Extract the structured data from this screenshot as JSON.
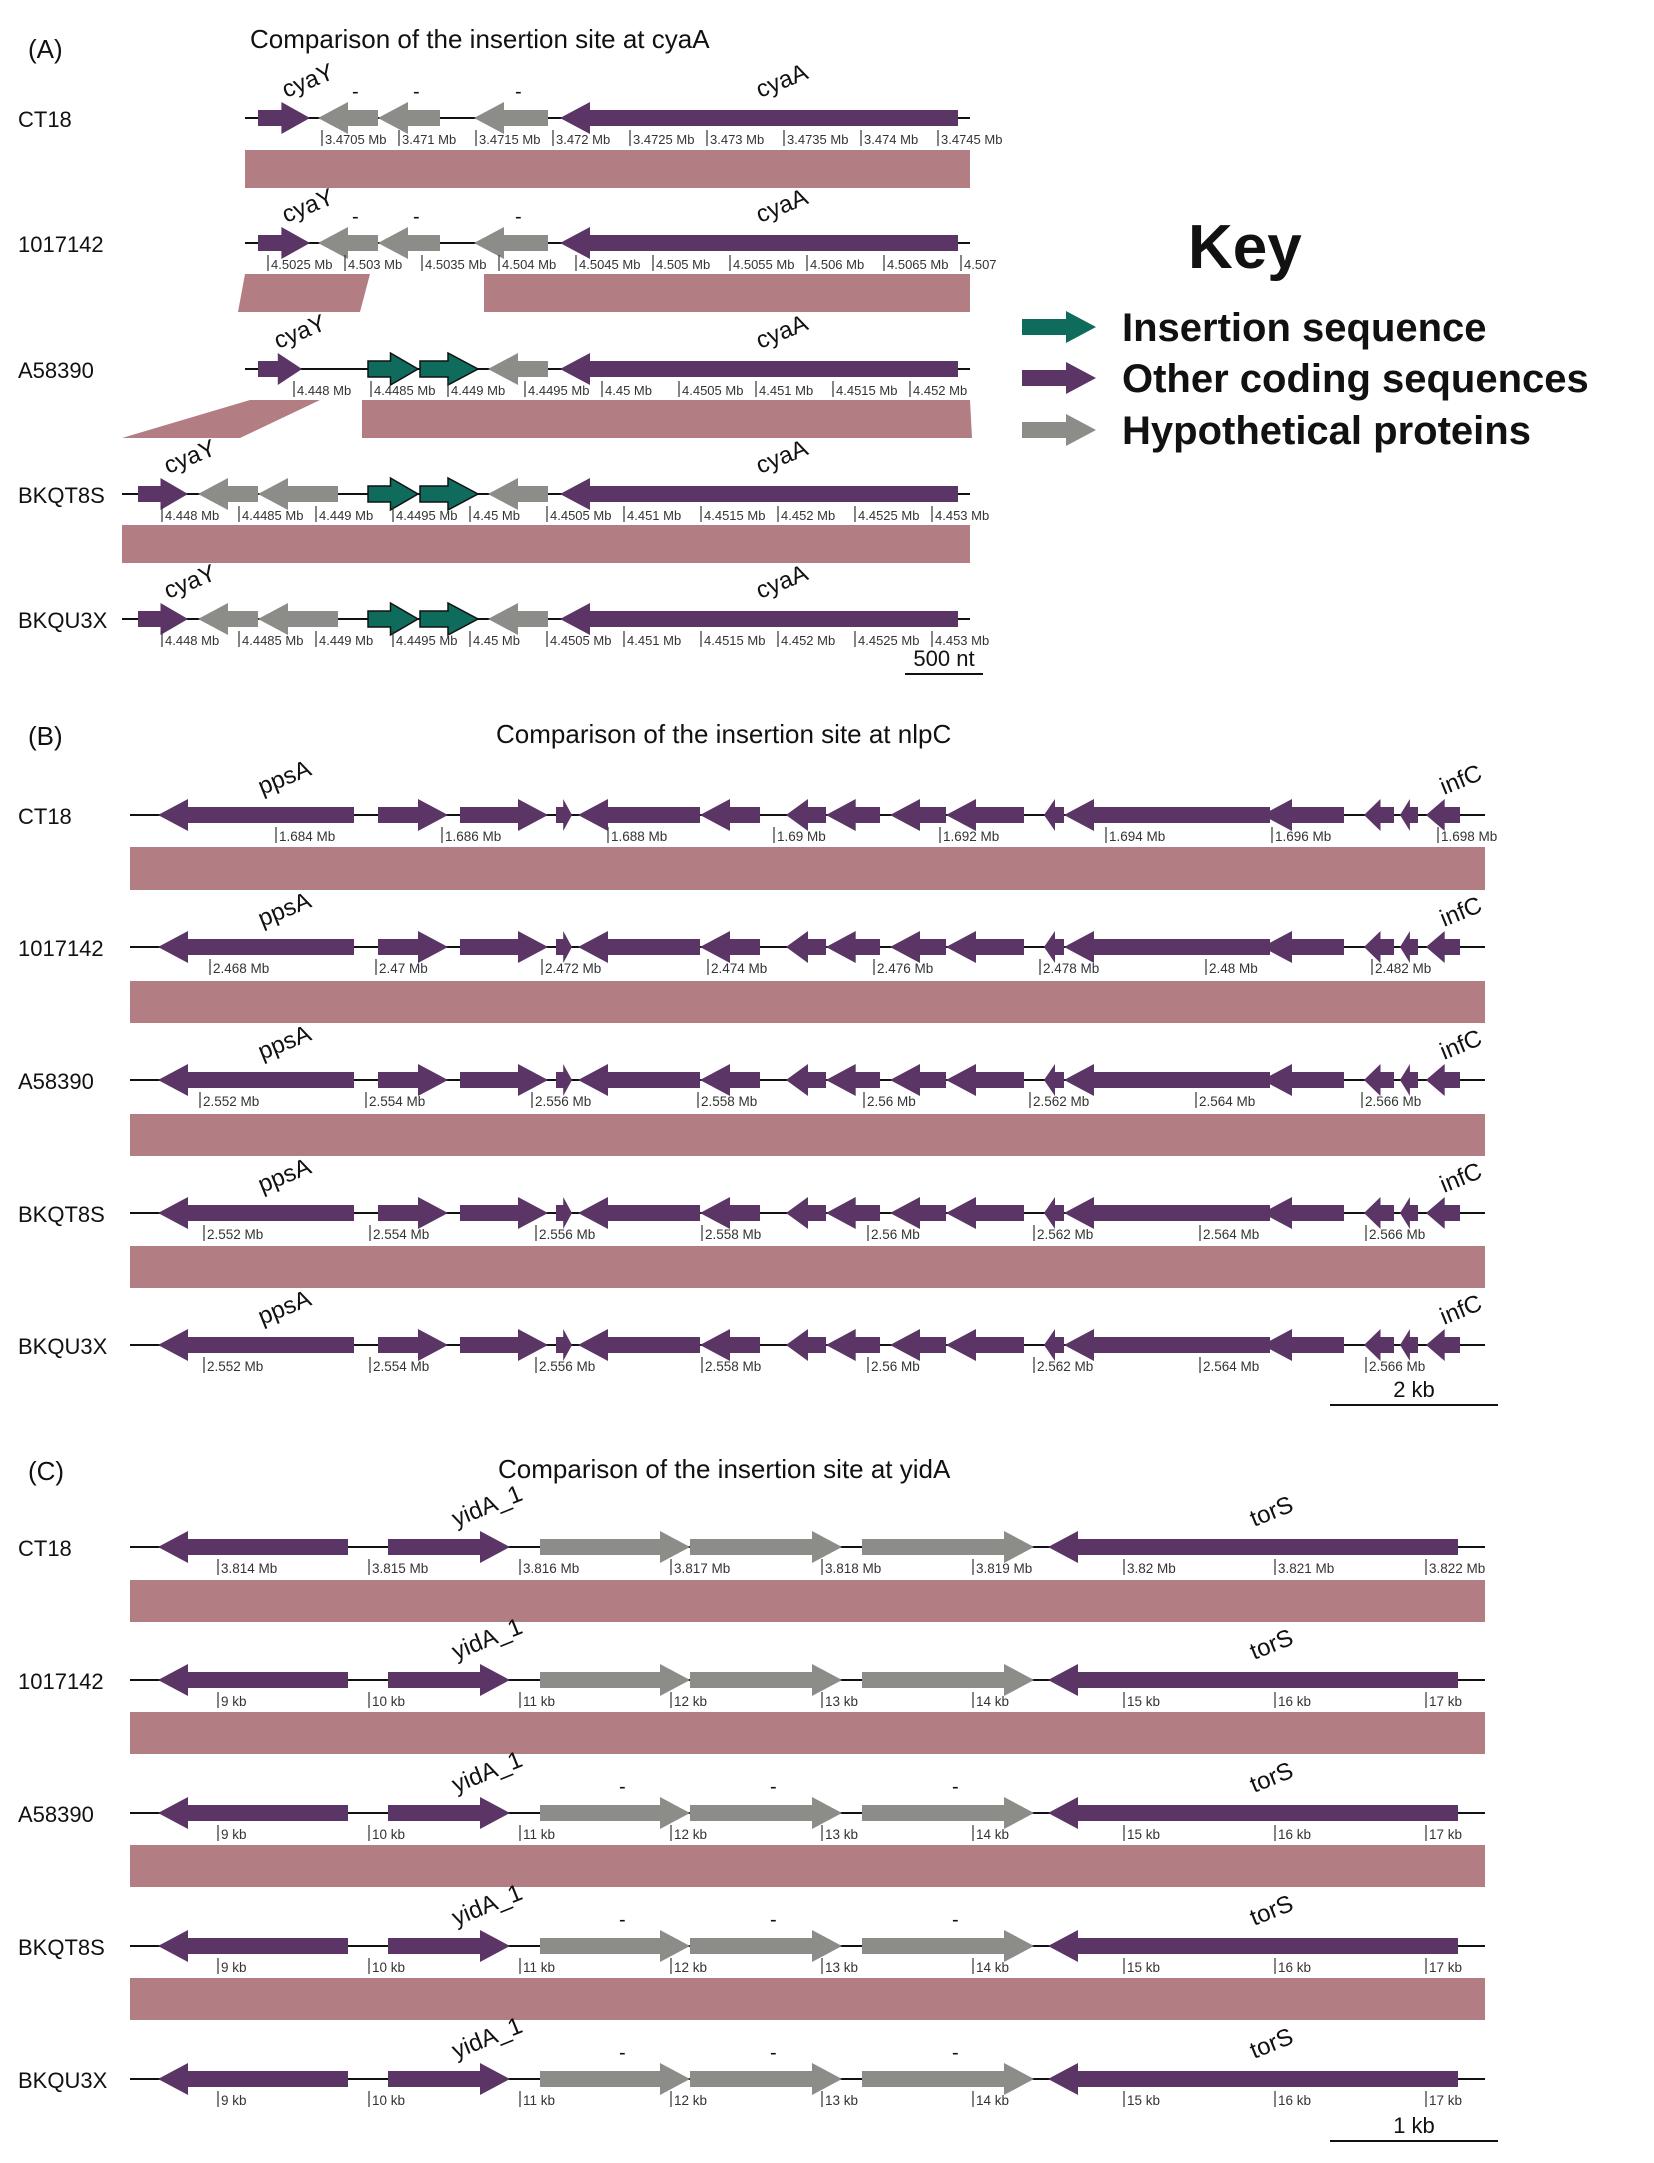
{
  "colors": {
    "insertion": "#0f6b5c",
    "other": "#5b3565",
    "hypothetical": "#8c8c89",
    "band": "#b27d83",
    "line": "#111111"
  },
  "key": {
    "title": "Key",
    "items": [
      {
        "label": "Insertion sequence",
        "type": "insertion"
      },
      {
        "label": "Other coding sequences",
        "type": "other"
      },
      {
        "label": "Hypothetical proteins",
        "type": "hypothetical"
      }
    ]
  },
  "panels": [
    {
      "letter": "(A)",
      "title": "Comparison of the insertion site at cyaA",
      "scale_label": "500 nt",
      "tracks": [
        {
          "strain": "CT18",
          "ticks": [
            "3.4705 Mb",
            "3.471 Mb",
            "3.4715 Mb",
            "3.472 Mb",
            "3.4725 Mb",
            "3.473 Mb",
            "3.4735 Mb",
            "3.474 Mb",
            "3.4745 Mb"
          ],
          "genes": [
            {
              "type": "other",
              "dir": 1,
              "label": "cyaY"
            },
            {
              "type": "hypothetical",
              "dir": -1,
              "label": "-"
            },
            {
              "type": "hypothetical",
              "dir": -1,
              "label": "-"
            },
            {
              "type": "hypothetical",
              "dir": -1,
              "label": "-"
            },
            {
              "type": "other",
              "dir": -1,
              "label": "cyaA"
            }
          ]
        },
        {
          "strain": "1017142",
          "ticks": [
            "4.5025 Mb",
            "4.503 Mb",
            "4.5035 Mb",
            "4.504 Mb",
            "4.5045 Mb",
            "4.505 Mb",
            "4.5055 Mb",
            "4.506 Mb",
            "4.5065 Mb",
            "4.507"
          ],
          "genes": [
            {
              "type": "other",
              "dir": 1,
              "label": "cyaY"
            },
            {
              "type": "hypothetical",
              "dir": -1,
              "label": "-"
            },
            {
              "type": "hypothetical",
              "dir": -1,
              "label": "-"
            },
            {
              "type": "hypothetical",
              "dir": -1,
              "label": "-"
            },
            {
              "type": "other",
              "dir": -1,
              "label": "cyaA"
            }
          ]
        },
        {
          "strain": "A58390",
          "ticks": [
            "4.448 Mb",
            "4.4485 Mb",
            "4.449 Mb",
            "4.4495 Mb",
            "4.45 Mb",
            "4.4505 Mb",
            "4.451 Mb",
            "4.4515 Mb",
            "4.452 Mb"
          ],
          "genes": [
            {
              "type": "other",
              "dir": 1,
              "label": "cyaY"
            },
            {
              "type": "insertion",
              "dir": 1,
              "label": ""
            },
            {
              "type": "insertion",
              "dir": 1,
              "label": ""
            },
            {
              "type": "hypothetical",
              "dir": -1,
              "label": ""
            },
            {
              "type": "other",
              "dir": -1,
              "label": "cyaA"
            }
          ]
        },
        {
          "strain": "BKQT8S",
          "ticks": [
            "4.448 Mb",
            "4.4485 Mb",
            "4.449 Mb",
            "4.4495 Mb",
            "4.45 Mb",
            "4.4505 Mb",
            "4.451 Mb",
            "4.4515 Mb",
            "4.452 Mb",
            "4.4525 Mb",
            "4.453 Mb"
          ],
          "genes": [
            {
              "type": "other",
              "dir": 1,
              "label": "cyaY"
            },
            {
              "type": "hypothetical",
              "dir": -1,
              "label": ""
            },
            {
              "type": "hypothetical",
              "dir": -1,
              "label": ""
            },
            {
              "type": "insertion",
              "dir": 1,
              "label": ""
            },
            {
              "type": "insertion",
              "dir": 1,
              "label": ""
            },
            {
              "type": "hypothetical",
              "dir": -1,
              "label": ""
            },
            {
              "type": "other",
              "dir": -1,
              "label": "cyaA"
            }
          ]
        },
        {
          "strain": "BKQU3X",
          "ticks": [
            "4.448 Mb",
            "4.4485 Mb",
            "4.449 Mb",
            "4.4495 Mb",
            "4.45 Mb",
            "4.4505 Mb",
            "4.451 Mb",
            "4.4515 Mb",
            "4.452 Mb",
            "4.4525 Mb",
            "4.453 Mb"
          ],
          "genes": [
            {
              "type": "other",
              "dir": 1,
              "label": "cyaY"
            },
            {
              "type": "hypothetical",
              "dir": -1,
              "label": ""
            },
            {
              "type": "hypothetical",
              "dir": -1,
              "label": ""
            },
            {
              "type": "insertion",
              "dir": 1,
              "label": ""
            },
            {
              "type": "insertion",
              "dir": 1,
              "label": ""
            },
            {
              "type": "hypothetical",
              "dir": -1,
              "label": ""
            },
            {
              "type": "other",
              "dir": -1,
              "label": "cyaA"
            }
          ]
        }
      ]
    },
    {
      "letter": "(B)",
      "title": "Comparison of the insertion site at nlpC",
      "scale_label": "2 kb",
      "tracks": [
        {
          "strain": "CT18",
          "ticks": [
            "1.684 Mb",
            "1.686 Mb",
            "1.688 Mb",
            "1.69 Mb",
            "1.692 Mb",
            "1.694 Mb",
            "1.696 Mb",
            "1.698 Mb"
          ]
        },
        {
          "strain": "1017142",
          "ticks": [
            "2.468 Mb",
            "2.47 Mb",
            "2.472 Mb",
            "2.474 Mb",
            "2.476 Mb",
            "2.478 Mb",
            "2.48 Mb",
            "2.482 Mb"
          ]
        },
        {
          "strain": "A58390",
          "ticks": [
            "2.552 Mb",
            "2.554 Mb",
            "2.556 Mb",
            "2.558 Mb",
            "2.56 Mb",
            "2.562 Mb",
            "2.564 Mb",
            "2.566 Mb"
          ]
        },
        {
          "strain": "BKQT8S",
          "ticks": [
            "2.552 Mb",
            "2.554 Mb",
            "2.556 Mb",
            "2.558 Mb",
            "2.56 Mb",
            "2.562 Mb",
            "2.564 Mb",
            "2.566 Mb"
          ]
        },
        {
          "strain": "BKQU3X",
          "ticks": [
            "2.552 Mb",
            "2.554 Mb",
            "2.556 Mb",
            "2.558 Mb",
            "2.56 Mb",
            "2.562 Mb",
            "2.564 Mb",
            "2.566 Mb"
          ]
        }
      ],
      "genes": [
        {
          "type": "other",
          "dir": -1,
          "label": "ppsA"
        },
        {
          "type": "other",
          "dir": 1,
          "label": ""
        },
        {
          "type": "other",
          "dir": 1,
          "label": ""
        },
        {
          "type": "other",
          "dir": 1,
          "label": ""
        },
        {
          "type": "other",
          "dir": -1,
          "label": ""
        },
        {
          "type": "other",
          "dir": -1,
          "label": ""
        },
        {
          "type": "other",
          "dir": -1,
          "label": ""
        },
        {
          "type": "other",
          "dir": -1,
          "label": ""
        },
        {
          "type": "other",
          "dir": -1,
          "label": ""
        },
        {
          "type": "other",
          "dir": -1,
          "label": ""
        },
        {
          "type": "other",
          "dir": -1,
          "label": ""
        },
        {
          "type": "other",
          "dir": -1,
          "label": ""
        },
        {
          "type": "other",
          "dir": -1,
          "label": ""
        },
        {
          "type": "other",
          "dir": -1,
          "label": ""
        },
        {
          "type": "other",
          "dir": -1,
          "label": ""
        },
        {
          "type": "other",
          "dir": -1,
          "label": ""
        },
        {
          "type": "other",
          "dir": -1,
          "label": "infC"
        }
      ]
    },
    {
      "letter": "(C)",
      "title": "Comparison of the insertion site at yidA",
      "scale_label": "1 kb",
      "tracks": [
        {
          "strain": "CT18",
          "ticks": [
            "3.814 Mb",
            "3.815 Mb",
            "3.816 Mb",
            "3.817 Mb",
            "3.818 Mb",
            "3.819 Mb",
            "3.82 Mb",
            "3.821 Mb",
            "3.822 Mb"
          ],
          "hypo_labels": [
            "",
            "",
            ""
          ]
        },
        {
          "strain": "1017142",
          "ticks": [
            "9 kb",
            "10 kb",
            "11 kb",
            "12 kb",
            "13 kb",
            "14 kb",
            "15 kb",
            "16 kb",
            "17 kb"
          ],
          "hypo_labels": [
            "",
            "",
            ""
          ]
        },
        {
          "strain": "A58390",
          "ticks": [
            "9 kb",
            "10 kb",
            "11 kb",
            "12 kb",
            "13 kb",
            "14 kb",
            "15 kb",
            "16 kb",
            "17 kb"
          ],
          "hypo_labels": [
            "-",
            "-",
            "-"
          ]
        },
        {
          "strain": "BKQT8S",
          "ticks": [
            "9 kb",
            "10 kb",
            "11 kb",
            "12 kb",
            "13 kb",
            "14 kb",
            "15 kb",
            "16 kb",
            "17 kb"
          ],
          "hypo_labels": [
            "-",
            "-",
            "-"
          ]
        },
        {
          "strain": "BKQU3X",
          "ticks": [
            "9 kb",
            "10 kb",
            "11 kb",
            "12 kb",
            "13 kb",
            "14 kb",
            "15 kb",
            "16 kb",
            "17 kb"
          ],
          "hypo_labels": [
            "-",
            "-",
            "-"
          ]
        }
      ],
      "gene_labels": [
        "yidA_1",
        "torS"
      ]
    }
  ]
}
